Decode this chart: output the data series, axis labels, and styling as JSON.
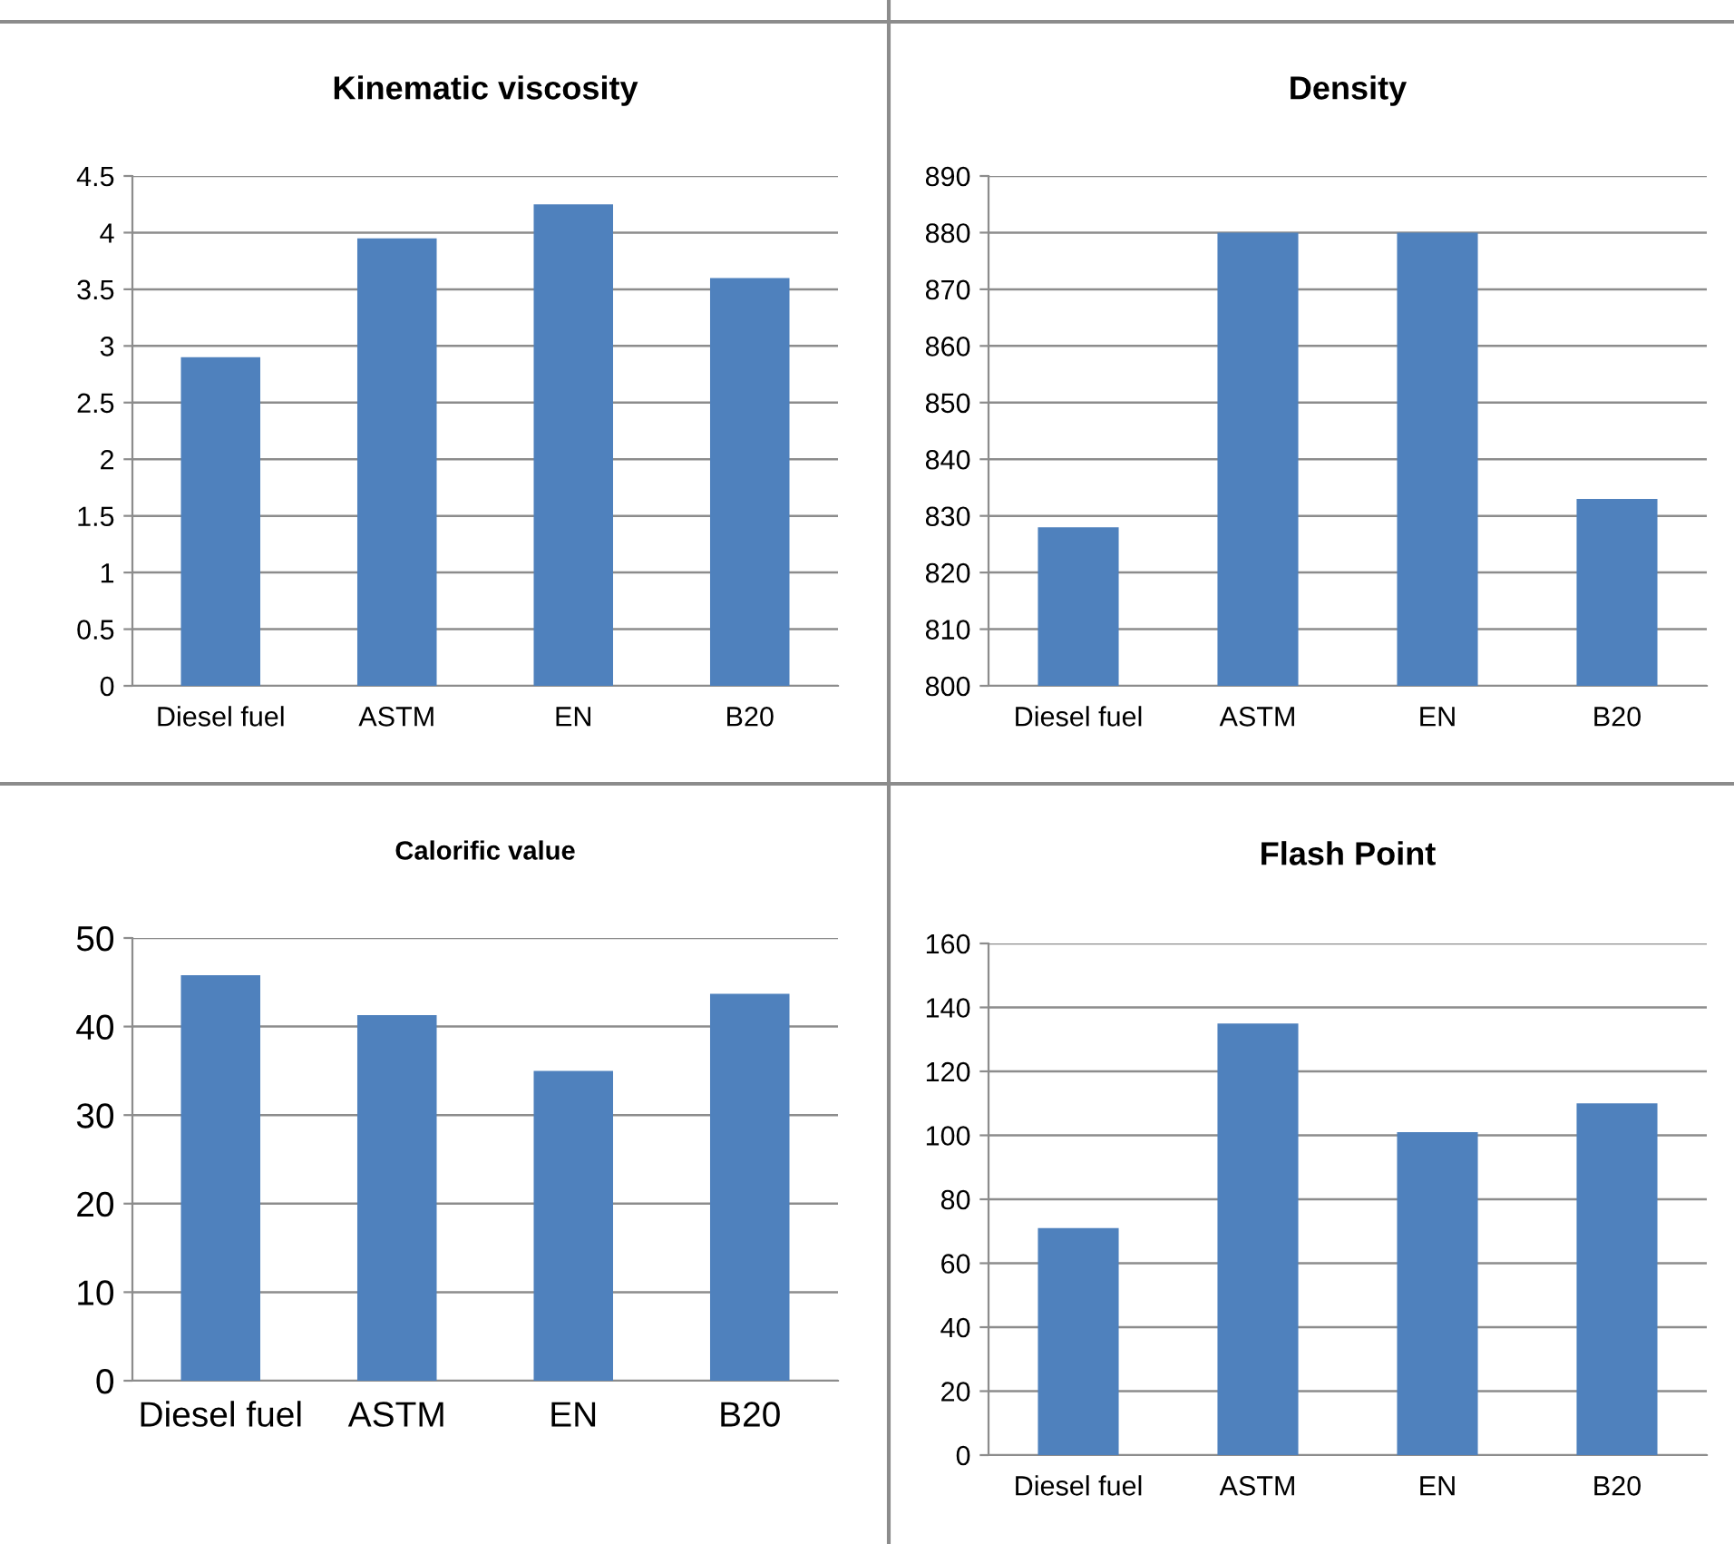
{
  "chart_data": [
    {
      "type": "bar",
      "title": "Kinematic viscosity",
      "categories": [
        "Diesel fuel",
        "ASTM",
        "EN",
        "B20"
      ],
      "values": [
        2.9,
        3.95,
        4.25,
        3.6
      ],
      "color": "#4f81bd",
      "ylim": [
        0,
        4.5
      ],
      "yticks": [
        0,
        0.5,
        1,
        1.5,
        2,
        2.5,
        3,
        3.5,
        4,
        4.5
      ],
      "grid": "y"
    },
    {
      "type": "bar",
      "title": "Density",
      "categories": [
        "Diesel fuel",
        "ASTM",
        "EN",
        "B20"
      ],
      "values": [
        828,
        880,
        880,
        833
      ],
      "color": "#4f81bd",
      "ylim": [
        800,
        890
      ],
      "yticks": [
        800,
        810,
        820,
        830,
        840,
        850,
        860,
        870,
        880,
        890
      ],
      "grid": "y"
    },
    {
      "type": "bar",
      "title": "Calorific value",
      "categories": [
        "Diesel fuel",
        "ASTM",
        "EN",
        "B20"
      ],
      "values": [
        45.8,
        41.3,
        35,
        43.7
      ],
      "color": "#4f81bd",
      "ylim": [
        0,
        50
      ],
      "yticks": [
        0,
        10,
        20,
        30,
        40,
        50
      ],
      "grid": "y"
    },
    {
      "type": "bar",
      "title": "Flash Point",
      "categories": [
        "Diesel fuel",
        "ASTM",
        "EN",
        "B20"
      ],
      "values": [
        71,
        135,
        101,
        110
      ],
      "color": "#4f81bd",
      "ylim": [
        0,
        160
      ],
      "yticks": [
        0,
        20,
        40,
        60,
        80,
        100,
        120,
        140,
        160
      ],
      "grid": "y"
    }
  ]
}
